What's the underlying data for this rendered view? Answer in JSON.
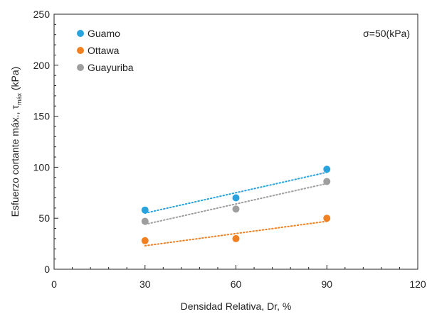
{
  "chart_data": {
    "type": "scatter",
    "xlabel": "Densidad Relativa, Dr, %",
    "ylabel_main": "Esfuerzo cortante máx., τ",
    "ylabel_sub": "máx",
    "ylabel_unit": " (kPa)",
    "xlim": [
      0,
      120
    ],
    "ylim": [
      0,
      250
    ],
    "xticks": [
      0,
      30,
      60,
      90,
      120
    ],
    "yticks": [
      0,
      50,
      100,
      150,
      200,
      250
    ],
    "annotation": "σ=50(kPa)",
    "legend_position": "top-left",
    "series": [
      {
        "name": "Guamo",
        "color": "#29a3dd",
        "x": [
          30,
          60,
          90
        ],
        "y": [
          58,
          70,
          98
        ],
        "trend": {
          "x": [
            30,
            90
          ],
          "y": [
            55,
            95
          ]
        }
      },
      {
        "name": "Ottawa",
        "color": "#f08020",
        "x": [
          30,
          60,
          90
        ],
        "y": [
          28,
          30,
          50
        ],
        "trend": {
          "x": [
            30,
            90
          ],
          "y": [
            23,
            47
          ]
        }
      },
      {
        "name": "Guayuriba",
        "color": "#9e9e9e",
        "x": [
          30,
          60,
          90
        ],
        "y": [
          47,
          59,
          86
        ],
        "trend": {
          "x": [
            30,
            90
          ],
          "y": [
            44,
            84
          ]
        }
      }
    ]
  }
}
